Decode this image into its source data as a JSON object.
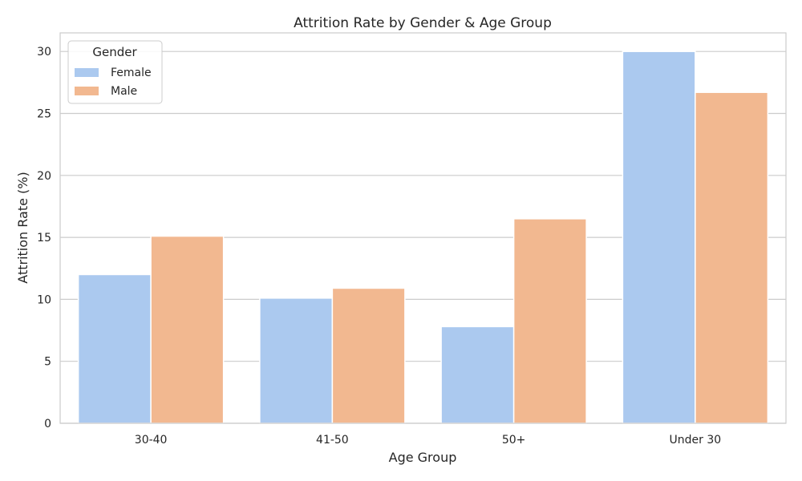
{
  "chart_data": {
    "type": "bar",
    "title": "Attrition Rate by Gender & Age Group",
    "xlabel": "Age Group",
    "ylabel": "Attrition Rate (%)",
    "categories": [
      "30-40",
      "41-50",
      "50+",
      "Under 30"
    ],
    "series": [
      {
        "name": "Female",
        "values": [
          12.0,
          10.1,
          7.8,
          30.0
        ],
        "color": "#abc9ef"
      },
      {
        "name": "Male",
        "values": [
          15.1,
          10.9,
          16.5,
          26.7
        ],
        "color": "#f2b890"
      }
    ],
    "ylim": [
      0,
      31.5
    ],
    "yticks": [
      0,
      5,
      10,
      15,
      20,
      25,
      30
    ],
    "grid": "horizontal",
    "legend": {
      "title": "Gender",
      "placement": "top-left"
    }
  }
}
